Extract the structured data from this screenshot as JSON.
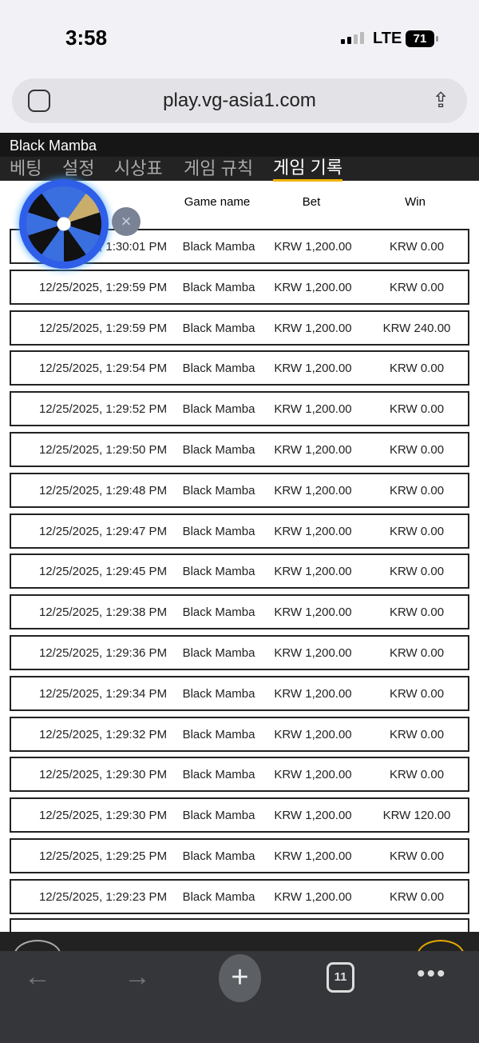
{
  "status": {
    "time": "3:58",
    "network": "LTE",
    "battery": "71"
  },
  "browser": {
    "url": "play.vg-asia1.com",
    "tab_count": "11"
  },
  "game": {
    "title": "Black Mamba",
    "tabs": [
      "베팅",
      "설정",
      "시상표",
      "게임 규칙",
      "게임 기록"
    ],
    "active_tab": 4
  },
  "table": {
    "headers": {
      "game": "Game name",
      "bet": "Bet",
      "win": "Win"
    },
    "rows": [
      {
        "date": "12/25/2025, 1:30:01 PM",
        "game": "Black Mamba",
        "bet": "KRW 1,200.00",
        "win": "KRW 0.00"
      },
      {
        "date": "12/25/2025, 1:29:59 PM",
        "game": "Black Mamba",
        "bet": "KRW 1,200.00",
        "win": "KRW 0.00"
      },
      {
        "date": "12/25/2025, 1:29:59 PM",
        "game": "Black Mamba",
        "bet": "KRW 1,200.00",
        "win": "KRW 240.00"
      },
      {
        "date": "12/25/2025, 1:29:54 PM",
        "game": "Black Mamba",
        "bet": "KRW 1,200.00",
        "win": "KRW 0.00"
      },
      {
        "date": "12/25/2025, 1:29:52 PM",
        "game": "Black Mamba",
        "bet": "KRW 1,200.00",
        "win": "KRW 0.00"
      },
      {
        "date": "12/25/2025, 1:29:50 PM",
        "game": "Black Mamba",
        "bet": "KRW 1,200.00",
        "win": "KRW 0.00"
      },
      {
        "date": "12/25/2025, 1:29:48 PM",
        "game": "Black Mamba",
        "bet": "KRW 1,200.00",
        "win": "KRW 0.00"
      },
      {
        "date": "12/25/2025, 1:29:47 PM",
        "game": "Black Mamba",
        "bet": "KRW 1,200.00",
        "win": "KRW 0.00"
      },
      {
        "date": "12/25/2025, 1:29:45 PM",
        "game": "Black Mamba",
        "bet": "KRW 1,200.00",
        "win": "KRW 0.00"
      },
      {
        "date": "12/25/2025, 1:29:38 PM",
        "game": "Black Mamba",
        "bet": "KRW 1,200.00",
        "win": "KRW 0.00"
      },
      {
        "date": "12/25/2025, 1:29:36 PM",
        "game": "Black Mamba",
        "bet": "KRW 1,200.00",
        "win": "KRW 0.00"
      },
      {
        "date": "12/25/2025, 1:29:34 PM",
        "game": "Black Mamba",
        "bet": "KRW 1,200.00",
        "win": "KRW 0.00"
      },
      {
        "date": "12/25/2025, 1:29:32 PM",
        "game": "Black Mamba",
        "bet": "KRW 1,200.00",
        "win": "KRW 0.00"
      },
      {
        "date": "12/25/2025, 1:29:30 PM",
        "game": "Black Mamba",
        "bet": "KRW 1,200.00",
        "win": "KRW 0.00"
      },
      {
        "date": "12/25/2025, 1:29:30 PM",
        "game": "Black Mamba",
        "bet": "KRW 1,200.00",
        "win": "KRW 120.00"
      },
      {
        "date": "12/25/2025, 1:29:25 PM",
        "game": "Black Mamba",
        "bet": "KRW 1,200.00",
        "win": "KRW 0.00"
      },
      {
        "date": "12/25/2025, 1:29:23 PM",
        "game": "Black Mamba",
        "bet": "KRW 1,200.00",
        "win": "KRW 0.00"
      }
    ]
  },
  "colors": {
    "accent": "#f0b400",
    "header_bg": "#161616",
    "wheel_blue": "#2f5ee8"
  }
}
